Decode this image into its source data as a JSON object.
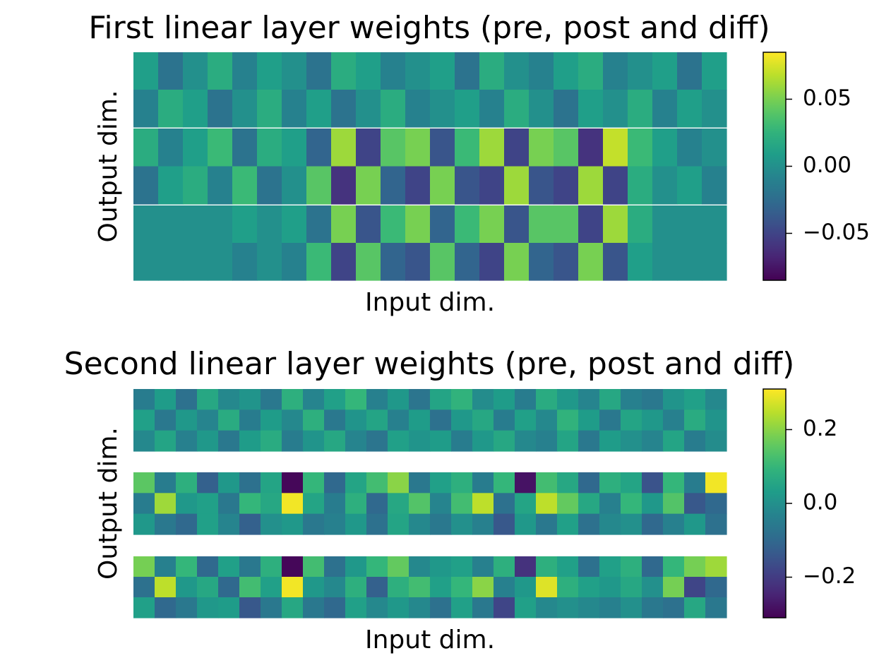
{
  "chart_data": [
    {
      "type": "heatmap",
      "title": "First linear layer weights (pre, post and diff)",
      "xlabel": "Input dim.",
      "ylabel": "Output dim.",
      "colormap": "viridis",
      "clim": [
        -0.085,
        0.085
      ],
      "cticks": [
        {
          "value": 0.05,
          "label": "0.05"
        },
        {
          "value": 0,
          "label": "0.00"
        },
        {
          "value": -0.05,
          "label": "−0.05"
        }
      ],
      "blocks": [
        [
          [
            0.01,
            -0.02,
            0.0,
            0.02,
            -0.01,
            0.01,
            0.0,
            -0.02,
            0.02,
            0.01,
            -0.01,
            0.0,
            0.01,
            -0.02,
            0.02,
            0.0,
            -0.01,
            0.01,
            0.02,
            -0.01,
            0.0,
            0.01,
            -0.02,
            0.01
          ],
          [
            -0.01,
            0.02,
            0.01,
            -0.02,
            0.0,
            0.02,
            -0.01,
            0.01,
            -0.02,
            0.0,
            0.02,
            -0.01,
            0.0,
            0.01,
            -0.01,
            0.02,
            0.0,
            -0.02,
            0.01,
            0.0,
            0.02,
            -0.01,
            0.01,
            0.0
          ]
        ],
        [
          [
            0.02,
            -0.01,
            0.01,
            0.03,
            -0.02,
            0.02,
            0.01,
            -0.03,
            0.06,
            -0.05,
            0.04,
            0.05,
            -0.04,
            0.03,
            0.06,
            -0.05,
            0.05,
            0.04,
            -0.06,
            0.07,
            0.03,
            0.01,
            -0.01,
            0.0
          ],
          [
            -0.02,
            0.01,
            0.02,
            -0.01,
            0.03,
            -0.02,
            0.0,
            0.04,
            -0.06,
            0.05,
            -0.03,
            -0.05,
            0.05,
            -0.04,
            -0.05,
            0.06,
            -0.04,
            -0.05,
            0.06,
            -0.05,
            0.02,
            0.0,
            0.01,
            -0.01
          ]
        ],
        [
          [
            0.0,
            0.0,
            0.0,
            0.0,
            0.01,
            0.0,
            0.01,
            -0.02,
            0.05,
            -0.04,
            0.03,
            0.05,
            -0.03,
            0.03,
            0.05,
            -0.04,
            0.04,
            0.04,
            -0.05,
            0.06,
            0.02,
            0.0,
            0.0,
            0.0
          ],
          [
            0.0,
            0.0,
            0.0,
            0.0,
            -0.01,
            0.0,
            -0.01,
            0.03,
            -0.05,
            0.04,
            -0.03,
            -0.04,
            0.04,
            -0.03,
            -0.05,
            0.05,
            -0.03,
            -0.04,
            0.05,
            -0.04,
            0.01,
            0.0,
            0.0,
            0.0
          ]
        ]
      ]
    },
    {
      "type": "heatmap",
      "title": "Second linear layer weights (pre, post and diff)",
      "xlabel": "Input dim.",
      "ylabel": "Output dim.",
      "colormap": "viridis",
      "clim": [
        -0.31,
        0.31
      ],
      "cticks": [
        0.2,
        {
          "value": 0,
          "label": "0.0"
        },
        {
          "value": -0.2,
          "label": "−0.2"
        }
      ],
      "blocks": [
        [
          [
            -0.05,
            0.03,
            -0.08,
            0.06,
            -0.02,
            0.01,
            -0.06,
            0.08,
            -0.03,
            0.04,
            0.1,
            -0.04,
            0.02,
            -0.07,
            0.05,
            0.09,
            -0.01,
            0.03,
            -0.05,
            0.07,
            0.02,
            -0.03,
            0.06,
            -0.04,
            -0.06,
            0.01,
            0.04,
            -0.02
          ],
          [
            0.04,
            -0.06,
            0.02,
            -0.03,
            0.07,
            -0.05,
            0.03,
            -0.02,
            0.08,
            -0.06,
            0.01,
            0.05,
            -0.04,
            0.03,
            -0.08,
            0.02,
            0.06,
            -0.05,
            0.04,
            -0.02,
            0.09,
            0.03,
            -0.06,
            0.05,
            0.02,
            -0.04,
            0.07,
            0.01
          ],
          [
            -0.02,
            0.05,
            -0.04,
            0.02,
            -0.06,
            0.03,
            0.07,
            -0.05,
            0.01,
            0.06,
            -0.03,
            -0.07,
            0.04,
            0.01,
            0.03,
            -0.05,
            0.02,
            0.06,
            -0.02,
            -0.04,
            0.05,
            -0.06,
            0.03,
            0.0,
            -0.03,
            0.05,
            -0.05,
            -0.01
          ]
        ],
        [
          [
            0.15,
            -0.05,
            0.08,
            -0.12,
            0.02,
            -0.08,
            0.05,
            -0.3,
            0.1,
            -0.1,
            0.05,
            0.12,
            0.2,
            -0.06,
            0.04,
            0.08,
            -0.05,
            0.1,
            -0.28,
            0.12,
            0.06,
            -0.1,
            0.08,
            0.05,
            -0.15,
            0.1,
            -0.05,
            0.3
          ],
          [
            -0.05,
            0.22,
            0.02,
            0.04,
            -0.06,
            0.1,
            0.06,
            0.3,
            0.05,
            -0.05,
            0.08,
            -0.1,
            0.06,
            0.14,
            -0.03,
            0.12,
            0.25,
            -0.08,
            0.05,
            0.25,
            0.16,
            0.06,
            -0.04,
            0.1,
            0.02,
            0.14,
            -0.14,
            -0.1
          ],
          [
            0.02,
            -0.06,
            -0.1,
            0.04,
            -0.03,
            -0.12,
            0.0,
            0.02,
            -0.06,
            -0.04,
            0.02,
            -0.08,
            0.05,
            -0.02,
            -0.06,
            0.0,
            -0.04,
            -0.14,
            0.02,
            -0.06,
            0.04,
            -0.08,
            -0.02,
            0.0,
            -0.1,
            -0.04,
            0.02,
            -0.08
          ]
        ],
        [
          [
            0.18,
            -0.04,
            0.1,
            -0.1,
            0.04,
            -0.06,
            0.08,
            -0.3,
            0.12,
            -0.08,
            0.02,
            0.1,
            0.16,
            -0.02,
            0.02,
            0.04,
            -0.04,
            0.08,
            -0.22,
            0.08,
            0.04,
            -0.08,
            0.04,
            0.08,
            -0.1,
            0.1,
            0.18,
            0.22
          ],
          [
            -0.08,
            0.25,
            0.02,
            0.06,
            -0.1,
            0.12,
            0.04,
            0.3,
            0.02,
            -0.02,
            0.08,
            -0.12,
            0.08,
            0.12,
            0.04,
            0.1,
            0.2,
            -0.04,
            0.02,
            0.28,
            0.08,
            0.04,
            0.02,
            0.06,
            0.0,
            0.18,
            -0.18,
            -0.1
          ],
          [
            0.04,
            -0.1,
            -0.06,
            0.02,
            0.03,
            -0.14,
            -0.06,
            0.06,
            -0.06,
            -0.1,
            0.04,
            -0.02,
            0.02,
            -0.02,
            -0.08,
            0.04,
            -0.06,
            -0.18,
            0.04,
            -0.02,
            0.0,
            -0.02,
            -0.04,
            0.0,
            -0.06,
            -0.08,
            0.06,
            -0.06
          ]
        ]
      ]
    }
  ]
}
